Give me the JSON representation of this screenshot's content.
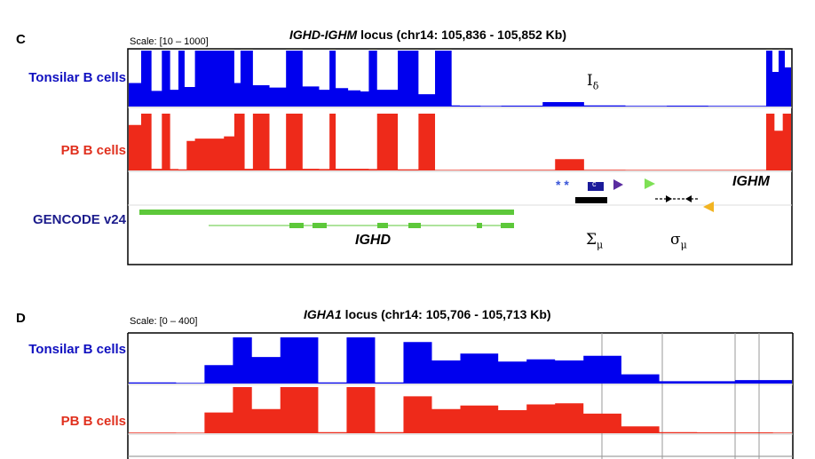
{
  "panel_c": {
    "letter": "C",
    "scale": "Scale: [10 – 1000]",
    "title_gene": "IGHD-IGHM",
    "title_rest": " locus (chr14: 105,836 - 105,852 Kb)",
    "track1_label": "Tonsilar B cells",
    "track2_label": "PB B cells",
    "track3_label": "GENCODE v24",
    "gene_ighd": "IGHD",
    "gene_ighm": "IGHM",
    "idelta_base": "I",
    "idelta_sub": "δ",
    "sigma_mu_upper_base": "Σ",
    "sigma_mu_upper_sub": "μ",
    "sigma_mu_lower_base": "σ",
    "sigma_mu_lower_sub": "μ",
    "asterisks": "* *",
    "box_letter": "c"
  },
  "panel_d": {
    "letter": "D",
    "scale": "Scale: [0 – 400]",
    "title_gene": "IGHA1",
    "title_rest": " locus (chr14: 105,706 - 105,713 Kb)",
    "track1_label": "Tonsilar B cells",
    "track2_label": "PB B cells"
  },
  "colors": {
    "tonsilar": "#0000ee",
    "pb": "#ee2a1a",
    "gencode": "#5dc83a",
    "label_navy": "#1c1c8c"
  },
  "chart_data": [
    {
      "type": "area",
      "title": "IGHD-IGHM locus (chr14: 105,836 - 105,852 Kb)",
      "scale": [
        10,
        1000
      ],
      "x_range_kb": [
        105836,
        105852
      ],
      "series": [
        {
          "name": "Tonsilar B cells",
          "x_kb": [
            105836.0,
            105836.3,
            105836.55,
            105836.8,
            105837.0,
            105837.2,
            105837.35,
            105837.6,
            105838.0,
            105838.3,
            105838.55,
            105838.7,
            105839.0,
            105839.4,
            105839.8,
            105840.2,
            105840.6,
            105840.85,
            105841.0,
            105841.3,
            105841.6,
            105841.8,
            105842.0,
            105842.5,
            105843.0,
            105843.4,
            105843.8,
            105844.0,
            105844.5,
            105845.0,
            105846.0,
            105847.0,
            105848.0,
            105849.0,
            105850.0,
            105851.0,
            105851.4,
            105851.55,
            105851.7,
            105851.85,
            105852.0
          ],
          "values": [
            420,
            1000,
            280,
            1000,
            300,
            1000,
            350,
            1000,
            1000,
            1000,
            420,
            1000,
            380,
            340,
            1000,
            360,
            300,
            1000,
            330,
            290,
            270,
            1000,
            300,
            1000,
            220,
            1000,
            20,
            15,
            12,
            15,
            80,
            20,
            12,
            15,
            12,
            12,
            1000,
            620,
            1000,
            700,
            1000
          ]
        },
        {
          "name": "PB B cells",
          "x_kb": [
            105836.0,
            105836.3,
            105836.55,
            105836.8,
            105837.0,
            105837.2,
            105837.4,
            105837.6,
            105838.0,
            105838.3,
            105838.55,
            105838.8,
            105839.0,
            105839.4,
            105839.8,
            105840.2,
            105840.6,
            105840.85,
            105841.0,
            105841.4,
            105841.8,
            105842.0,
            105842.5,
            105843.0,
            105843.4,
            105843.8,
            105844.0,
            105845.0,
            105846.0,
            105846.3,
            105847.0,
            105848.0,
            105849.0,
            105850.0,
            105851.0,
            105851.4,
            105851.6,
            105851.8,
            105852.0
          ],
          "values": [
            800,
            1000,
            30,
            1000,
            25,
            20,
            520,
            560,
            560,
            600,
            1000,
            30,
            1000,
            30,
            1000,
            30,
            25,
            1000,
            30,
            30,
            25,
            1000,
            20,
            1000,
            10,
            10,
            12,
            12,
            12,
            200,
            12,
            10,
            10,
            10,
            10,
            1000,
            700,
            1000,
            1000
          ]
        }
      ],
      "annotations": [
        "Iδ",
        "Σμ",
        "σμ",
        "IGHD",
        "IGHM",
        "* *"
      ],
      "gencode_track": "GENCODE v24"
    },
    {
      "type": "area",
      "title": "IGHA1 locus (chr14: 105,706 - 105,713 Kb)",
      "scale": [
        0,
        400
      ],
      "x_range_kb": [
        105706,
        105713
      ],
      "series": [
        {
          "name": "Tonsilar B cells",
          "x_kb": [
            105706.0,
            105706.5,
            105706.8,
            105707.1,
            105707.3,
            105707.6,
            105708.0,
            105708.3,
            105708.6,
            105708.9,
            105709.2,
            105709.5,
            105709.9,
            105710.2,
            105710.5,
            105710.8,
            105711.2,
            105711.6,
            105712.0,
            105712.4,
            105712.8,
            105713.0
          ],
          "values": [
            10,
            6,
            160,
            400,
            230,
            400,
            10,
            400,
            10,
            360,
            200,
            260,
            190,
            210,
            200,
            240,
            80,
            20,
            20,
            30,
            30,
            25
          ]
        },
        {
          "name": "PB B cells",
          "x_kb": [
            105706.0,
            105706.5,
            105706.8,
            105707.1,
            105707.3,
            105707.6,
            105708.0,
            105708.3,
            105708.6,
            105708.9,
            105709.2,
            105709.5,
            105709.9,
            105710.2,
            105710.5,
            105710.8,
            105711.2,
            105711.6,
            105712.0,
            105712.4,
            105712.8,
            105713.0
          ],
          "values": [
            6,
            5,
            180,
            400,
            210,
            400,
            10,
            400,
            10,
            320,
            210,
            240,
            200,
            250,
            260,
            170,
            60,
            10,
            8,
            8,
            6,
            6
          ]
        }
      ]
    }
  ]
}
